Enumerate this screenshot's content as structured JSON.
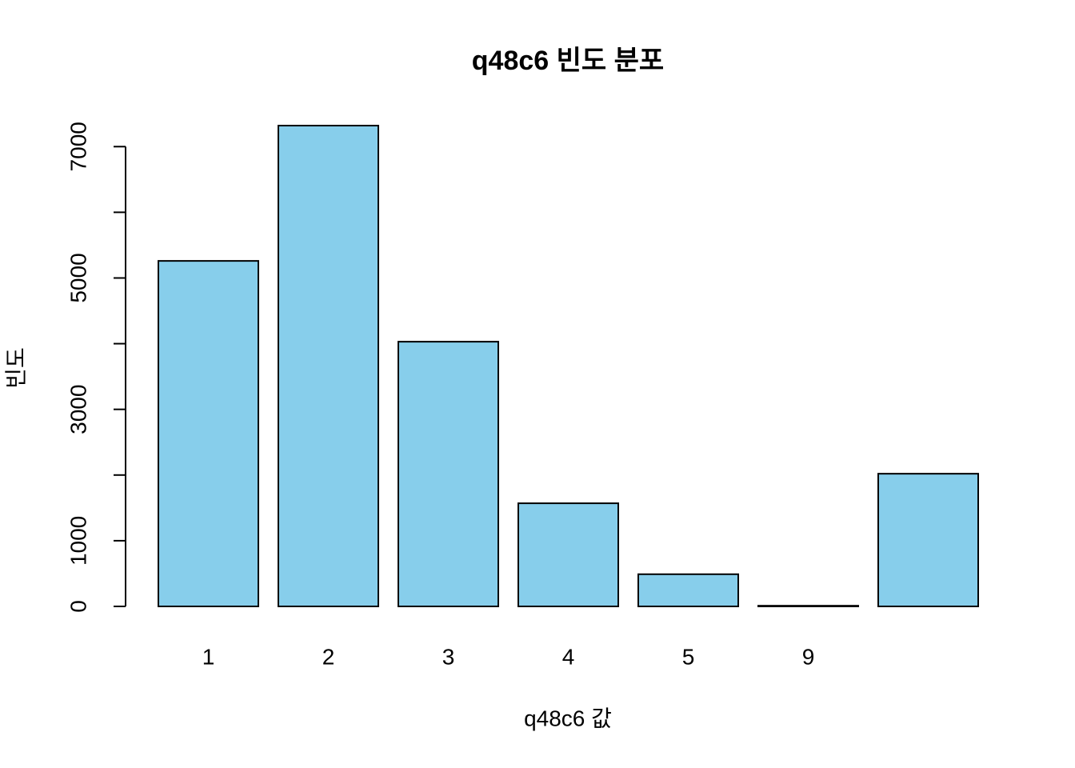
{
  "chart_data": {
    "type": "bar",
    "title": "q48c6 빈도 분포",
    "x_label": "q48c6 값",
    "y_label": "빈도",
    "categories": [
      "1",
      "2",
      "3",
      "4",
      "5",
      "9",
      null
    ],
    "values": [
      5260,
      7320,
      4030,
      1570,
      490,
      10,
      2020
    ],
    "color": "#87ceeb",
    "ylim": [
      0,
      7320
    ],
    "yticks": [
      0,
      1000,
      3000,
      5000,
      7000
    ],
    "yticks_unlabeled": [
      2000,
      4000,
      6000
    ],
    "grid": false
  }
}
